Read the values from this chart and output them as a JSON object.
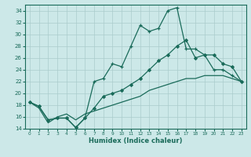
{
  "xlabel": "Humidex (Indice chaleur)",
  "bg_color": "#cce8e8",
  "grid_color": "#aacccc",
  "line_color": "#1a6b5a",
  "xlim": [
    -0.5,
    23.5
  ],
  "ylim": [
    14,
    35
  ],
  "yticks": [
    14,
    16,
    18,
    20,
    22,
    24,
    26,
    28,
    30,
    32,
    34
  ],
  "xticks": [
    0,
    1,
    2,
    3,
    4,
    5,
    6,
    7,
    8,
    9,
    10,
    11,
    12,
    13,
    14,
    15,
    16,
    17,
    18,
    19,
    20,
    21,
    22,
    23
  ],
  "series1": [
    18.5,
    17.8,
    15.5,
    15.8,
    15.8,
    14.2,
    15.8,
    22.0,
    22.5,
    25.0,
    24.5,
    28.0,
    31.5,
    30.5,
    31.0,
    34.0,
    34.5,
    27.5,
    27.5,
    26.5,
    24.0,
    24.0,
    23.0,
    22.0
  ],
  "series2": [
    18.5,
    17.8,
    15.5,
    15.8,
    15.8,
    14.2,
    15.8,
    17.5,
    19.5,
    20.0,
    20.5,
    21.5,
    22.5,
    24.0,
    25.5,
    26.5,
    28.0,
    29.0,
    26.0,
    26.5,
    26.5,
    25.0,
    24.5,
    22.0
  ],
  "series3": [
    18.5,
    17.5,
    15.0,
    16.0,
    16.5,
    15.5,
    16.5,
    17.0,
    17.5,
    18.0,
    18.5,
    19.0,
    19.5,
    20.5,
    21.0,
    21.5,
    22.0,
    22.5,
    22.5,
    23.0,
    23.0,
    23.0,
    22.5,
    22.0
  ]
}
